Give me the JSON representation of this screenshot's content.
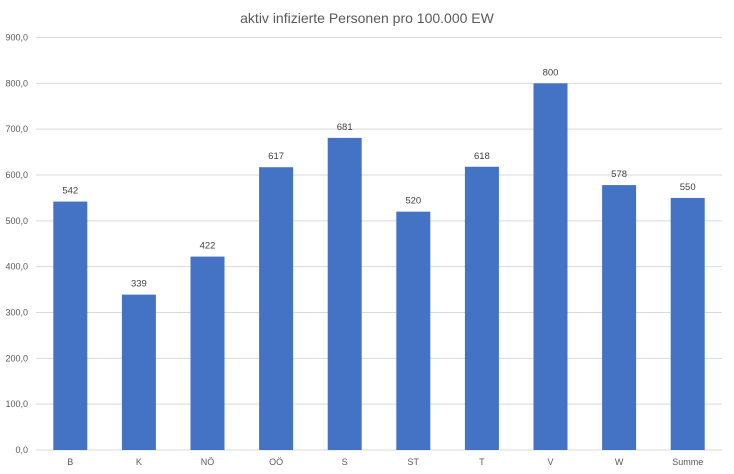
{
  "chart_data": {
    "type": "bar",
    "title": "aktiv infizierte Personen pro 100.000 EW",
    "categories": [
      "B",
      "K",
      "NÖ",
      "OÖ",
      "S",
      "ST",
      "T",
      "V",
      "W",
      "Summe"
    ],
    "values": [
      542,
      339,
      422,
      617,
      681,
      520,
      618,
      800,
      578,
      550
    ],
    "data_labels": [
      "542",
      "339",
      "422",
      "617",
      "681",
      "520",
      "618",
      "800",
      "578",
      "550"
    ],
    "y_ticks": [
      "0,0",
      "100,0",
      "200,0",
      "300,0",
      "400,0",
      "500,0",
      "600,0",
      "700,0",
      "800,0",
      "900,0"
    ],
    "ylim": [
      0,
      900
    ],
    "grid": true,
    "legend": "none",
    "bar_color": "#4472c4"
  }
}
